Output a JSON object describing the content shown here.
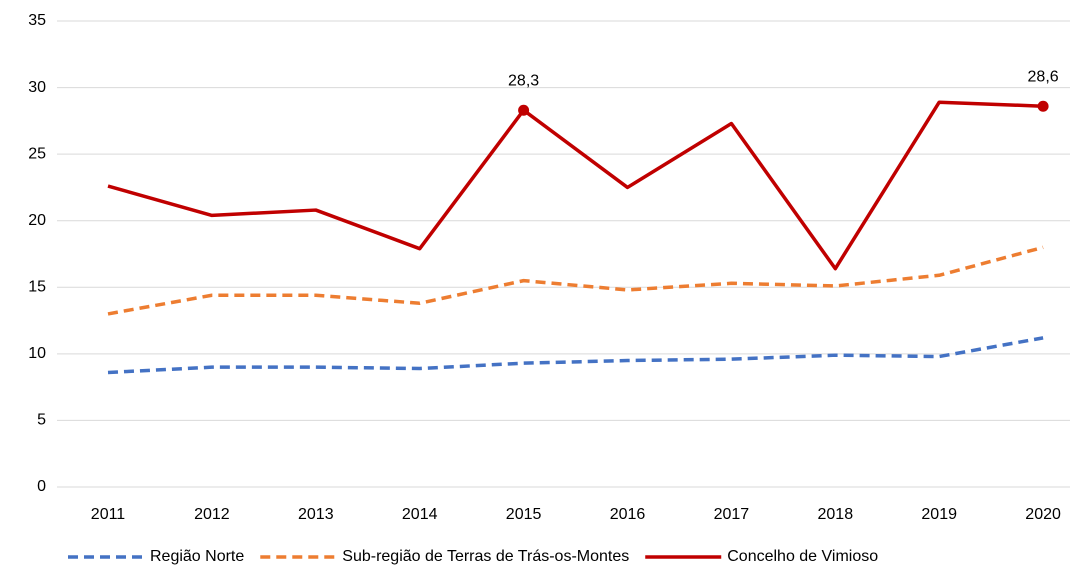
{
  "chart_data": {
    "type": "line",
    "categories": [
      "2011",
      "2012",
      "2013",
      "2014",
      "2015",
      "2016",
      "2017",
      "2018",
      "2019",
      "2020"
    ],
    "series": [
      {
        "name": "Região Norte",
        "color": "#4472c4",
        "dash": true,
        "values": [
          8.6,
          9.0,
          9.0,
          8.9,
          9.3,
          9.5,
          9.6,
          9.9,
          9.8,
          11.2
        ]
      },
      {
        "name": "Sub-região de Terras de Trás-os-Montes",
        "color": "#ed7d31",
        "dash": true,
        "values": [
          13.0,
          14.4,
          14.4,
          13.8,
          15.5,
          14.8,
          15.3,
          15.1,
          15.9,
          18.0
        ]
      },
      {
        "name": "Concelho de Vimioso",
        "color": "#c00000",
        "dash": false,
        "values": [
          22.6,
          20.4,
          20.8,
          17.9,
          28.3,
          22.5,
          27.3,
          16.4,
          28.9,
          28.6
        ],
        "value_labels": [
          null,
          null,
          null,
          null,
          "28,3",
          null,
          null,
          null,
          null,
          "28,6"
        ]
      }
    ],
    "ylim": [
      0,
      35
    ],
    "yticks": [
      0,
      5,
      10,
      15,
      20,
      25,
      30,
      35
    ],
    "grid": true,
    "legend": "bottom"
  }
}
